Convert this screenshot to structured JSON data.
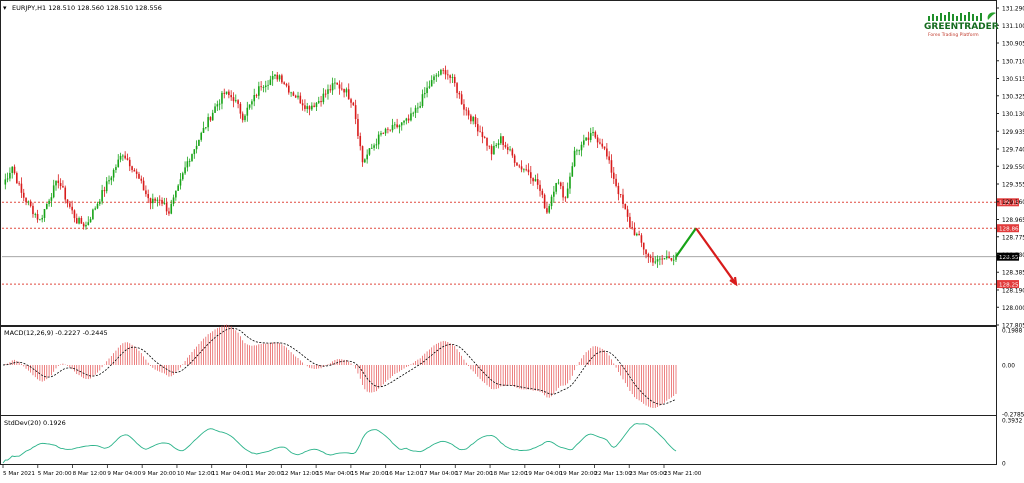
{
  "header": {
    "symbol_line": "EURJPY,H1  128.510 128.560 128.510 128.556",
    "menu_glyph": "▾"
  },
  "logo": {
    "brand": "GREENTRADER",
    "tagline": "Forex Trading Platform"
  },
  "colors": {
    "bull": "#17a317",
    "bear": "#d81b1b",
    "level_line": "#e0483e",
    "level_label_bg": "#e23b3b",
    "last_price_bg": "#000000",
    "macd_hist": "#e44b4b",
    "stddev_line": "#2bb38a",
    "grid_border": "#222222"
  },
  "chart_data": [
    {
      "type": "candlestick",
      "title": "EURJPY,H1",
      "y_ticks": [
        "131.290",
        "131.100",
        "130.905",
        "130.710",
        "130.515",
        "130.325",
        "130.130",
        "129.935",
        "129.740",
        "129.550",
        "129.355",
        "129.160",
        "128.965",
        "128.775",
        "128.580",
        "128.385",
        "128.190",
        "128.000",
        "127.805"
      ],
      "ylim": [
        127.805,
        131.29
      ],
      "x_tick_labels": [
        "5 Mar 2021",
        "5 Mar 20:00",
        "8 Mar 12:00",
        "9 Mar 04:00",
        "9 Mar 20:00",
        "10 Mar 12:00",
        "11 Mar 04:00",
        "11 Mar 20:00",
        "12 Mar 12:00",
        "15 Mar 04:00",
        "15 Mar 20:00",
        "16 Mar 12:00",
        "17 Mar 04:00",
        "17 Mar 20:00",
        "18 Mar 12:00",
        "19 Mar 04:00",
        "19 Mar 20:00",
        "22 Mar 13:00",
        "23 Mar 05:00",
        "23 Mar 21:00"
      ],
      "price_path": [
        129.35,
        129.55,
        129.25,
        129.1,
        128.95,
        129.2,
        129.4,
        129.15,
        128.95,
        128.9,
        129.1,
        129.3,
        129.5,
        129.7,
        129.55,
        129.35,
        129.15,
        129.2,
        129.05,
        129.3,
        129.6,
        129.8,
        130.0,
        130.2,
        130.35,
        130.3,
        130.1,
        130.25,
        130.45,
        130.5,
        130.55,
        130.4,
        130.3,
        130.2,
        130.25,
        130.35,
        130.45,
        130.4,
        130.25,
        129.6,
        129.75,
        129.9,
        129.95,
        130.0,
        130.05,
        130.2,
        130.4,
        130.55,
        130.6,
        130.45,
        130.2,
        130.05,
        129.9,
        129.7,
        129.85,
        129.7,
        129.55,
        129.5,
        129.35,
        129.05,
        129.4,
        129.2,
        129.7,
        129.8,
        129.9,
        129.8,
        129.5,
        129.2,
        128.9,
        128.75,
        128.55,
        128.5,
        128.55,
        128.556
      ],
      "levels": [
        {
          "label": "129.154",
          "value": 129.154
        },
        {
          "label": "128.869",
          "value": 128.869
        },
        {
          "label": "128.255",
          "value": 128.255
        }
      ],
      "last_price": {
        "label": "128.556",
        "value": 128.556
      },
      "forecast": {
        "up_to": 128.869,
        "down_to": 128.255
      }
    },
    {
      "type": "histogram+line",
      "title": "MACD(12,26,9) -0.2227 -0.2445",
      "y_ticks": [
        "0.1988",
        "0.00",
        "-0.2785"
      ],
      "ylim": [
        -0.2785,
        0.1988
      ]
    },
    {
      "type": "line",
      "title": "StdDev(20) 0.1926",
      "y_ticks": [
        "0.3932",
        "0"
      ],
      "ylim": [
        0,
        0.3932
      ]
    }
  ]
}
